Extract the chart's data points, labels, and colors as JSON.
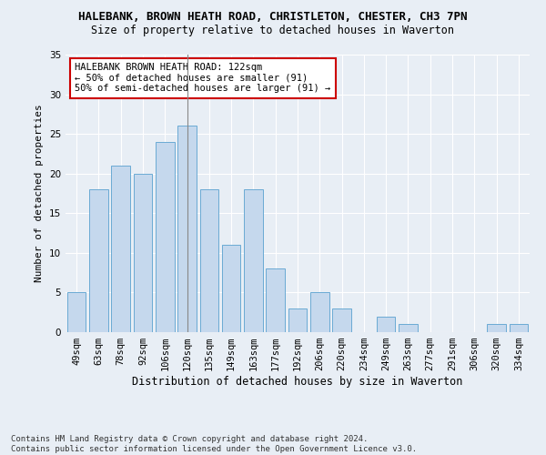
{
  "title": "HALEBANK, BROWN HEATH ROAD, CHRISTLETON, CHESTER, CH3 7PN",
  "subtitle": "Size of property relative to detached houses in Waverton",
  "xlabel": "Distribution of detached houses by size in Waverton",
  "ylabel": "Number of detached properties",
  "categories": [
    "49sqm",
    "63sqm",
    "78sqm",
    "92sqm",
    "106sqm",
    "120sqm",
    "135sqm",
    "149sqm",
    "163sqm",
    "177sqm",
    "192sqm",
    "206sqm",
    "220sqm",
    "234sqm",
    "249sqm",
    "263sqm",
    "277sqm",
    "291sqm",
    "306sqm",
    "320sqm",
    "334sqm"
  ],
  "values": [
    5,
    18,
    21,
    20,
    24,
    26,
    18,
    11,
    18,
    8,
    3,
    5,
    3,
    0,
    2,
    1,
    0,
    0,
    0,
    1,
    1
  ],
  "bar_color": "#c5d8ed",
  "bar_edge_color": "#6aaad4",
  "highlight_index": 5,
  "highlight_line_color": "#888888",
  "ylim": [
    0,
    35
  ],
  "yticks": [
    0,
    5,
    10,
    15,
    20,
    25,
    30,
    35
  ],
  "annotation_text": "HALEBANK BROWN HEATH ROAD: 122sqm\n← 50% of detached houses are smaller (91)\n50% of semi-detached houses are larger (91) →",
  "annotation_box_color": "#ffffff",
  "annotation_box_edge": "#cc0000",
  "footnote": "Contains HM Land Registry data © Crown copyright and database right 2024.\nContains public sector information licensed under the Open Government Licence v3.0.",
  "background_color": "#e8eef5",
  "grid_color": "#ffffff",
  "title_fontsize": 9,
  "subtitle_fontsize": 8.5,
  "xlabel_fontsize": 8.5,
  "ylabel_fontsize": 8,
  "tick_fontsize": 7.5,
  "annotation_fontsize": 7.5,
  "footnote_fontsize": 6.5
}
